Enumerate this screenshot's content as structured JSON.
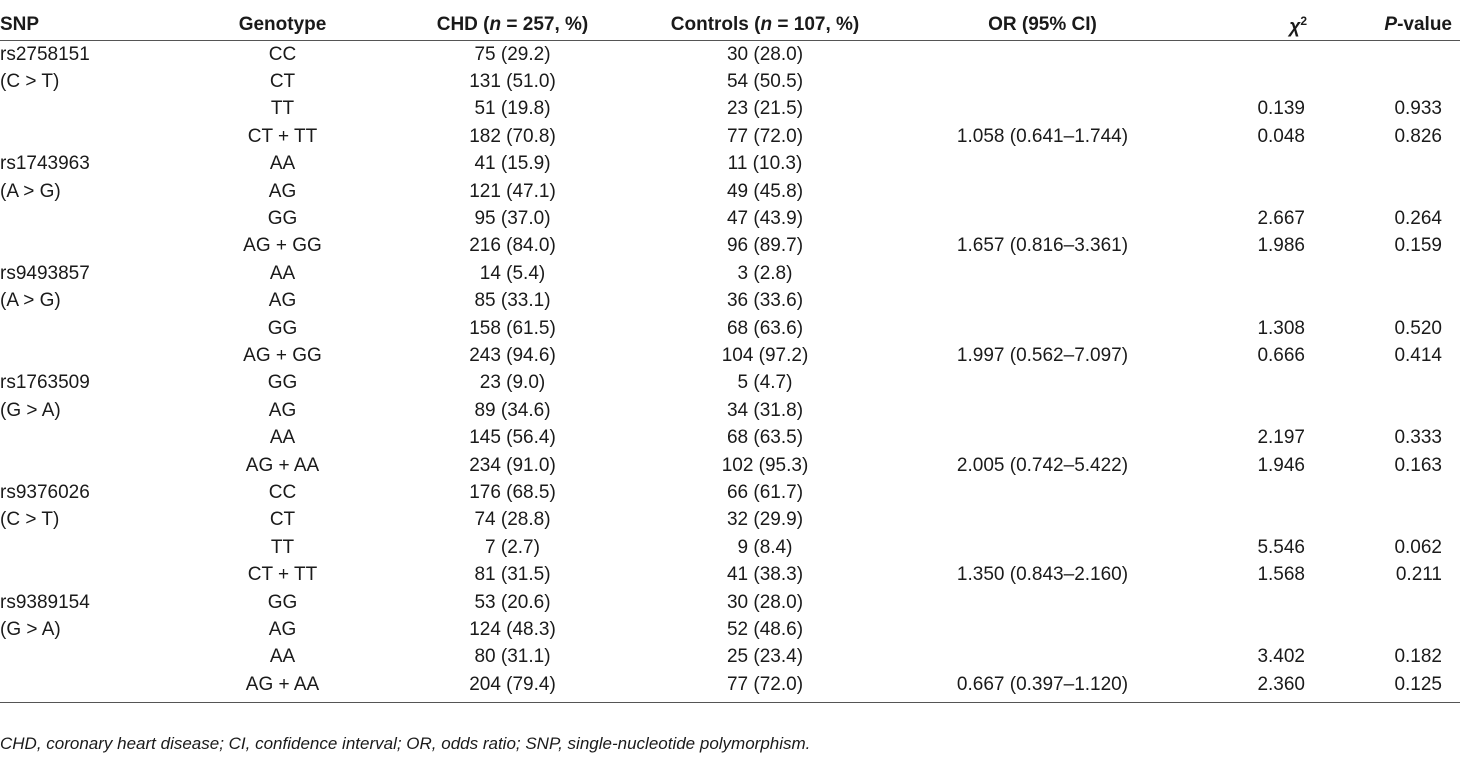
{
  "headers": {
    "snp": "SNP",
    "genotype": "Genotype",
    "chd_pre": "CHD (",
    "chd_n": "n",
    "chd_post": " = 257, %)",
    "ctrl_pre": "Controls (",
    "ctrl_n": "n",
    "ctrl_post": " = 107, %)",
    "or": "OR (95% CI)",
    "chi": "χ",
    "chi_sup": "2",
    "p_italic": "P",
    "p_rest": "-value"
  },
  "rows": [
    {
      "snp": "rs2758151",
      "genotype": "CC",
      "chd": "75 (29.2)",
      "controls": "30 (28.0)",
      "or": "",
      "chi2": "",
      "p": ""
    },
    {
      "snp": "(C > T)",
      "genotype": "CT",
      "chd": "131 (51.0)",
      "controls": "54 (50.5)",
      "or": "",
      "chi2": "",
      "p": ""
    },
    {
      "snp": "",
      "genotype": "TT",
      "chd": "51 (19.8)",
      "controls": "23 (21.5)",
      "or": "",
      "chi2": "0.139",
      "p": "0.933"
    },
    {
      "snp": "",
      "genotype": "CT + TT",
      "chd": "182 (70.8)",
      "controls": "77 (72.0)",
      "or": "1.058 (0.641–1.744)",
      "chi2": "0.048",
      "p": "0.826"
    },
    {
      "snp": "rs1743963",
      "genotype": "AA",
      "chd": "41 (15.9)",
      "controls": "11 (10.3)",
      "or": "",
      "chi2": "",
      "p": ""
    },
    {
      "snp": "(A > G)",
      "genotype": "AG",
      "chd": "121 (47.1)",
      "controls": "49 (45.8)",
      "or": "",
      "chi2": "",
      "p": ""
    },
    {
      "snp": "",
      "genotype": "GG",
      "chd": "95 (37.0)",
      "controls": "47 (43.9)",
      "or": "",
      "chi2": "2.667",
      "p": "0.264"
    },
    {
      "snp": "",
      "genotype": "AG + GG",
      "chd": "216 (84.0)",
      "controls": "96 (89.7)",
      "or": "1.657 (0.816–3.361)",
      "chi2": "1.986",
      "p": "0.159"
    },
    {
      "snp": "rs9493857",
      "genotype": "AA",
      "chd": "14 (5.4)",
      "controls": "3 (2.8)",
      "or": "",
      "chi2": "",
      "p": ""
    },
    {
      "snp": "(A > G)",
      "genotype": "AG",
      "chd": "85 (33.1)",
      "controls": "36 (33.6)",
      "or": "",
      "chi2": "",
      "p": ""
    },
    {
      "snp": "",
      "genotype": "GG",
      "chd": "158 (61.5)",
      "controls": "68 (63.6)",
      "or": "",
      "chi2": "1.308",
      "p": "0.520"
    },
    {
      "snp": "",
      "genotype": "AG + GG",
      "chd": "243 (94.6)",
      "controls": "104 (97.2)",
      "or": "1.997 (0.562–7.097)",
      "chi2": "0.666",
      "p": "0.414"
    },
    {
      "snp": "rs1763509",
      "genotype": "GG",
      "chd": "23 (9.0)",
      "controls": "5 (4.7)",
      "or": "",
      "chi2": "",
      "p": ""
    },
    {
      "snp": "(G > A)",
      "genotype": "AG",
      "chd": "89 (34.6)",
      "controls": "34 (31.8)",
      "or": "",
      "chi2": "",
      "p": ""
    },
    {
      "snp": "",
      "genotype": "AA",
      "chd": "145 (56.4)",
      "controls": "68 (63.5)",
      "or": "",
      "chi2": "2.197",
      "p": "0.333"
    },
    {
      "snp": "",
      "genotype": "AG + AA",
      "chd": "234 (91.0)",
      "controls": "102 (95.3)",
      "or": "2.005 (0.742–5.422)",
      "chi2": "1.946",
      "p": "0.163"
    },
    {
      "snp": "rs9376026",
      "genotype": "CC",
      "chd": "176 (68.5)",
      "controls": "66 (61.7)",
      "or": "",
      "chi2": "",
      "p": ""
    },
    {
      "snp": "(C > T)",
      "genotype": "CT",
      "chd": "74 (28.8)",
      "controls": "32 (29.9)",
      "or": "",
      "chi2": "",
      "p": ""
    },
    {
      "snp": "",
      "genotype": "TT",
      "chd": "7 (2.7)",
      "controls": "9 (8.4)",
      "or": "",
      "chi2": "5.546",
      "p": "0.062"
    },
    {
      "snp": "",
      "genotype": "CT + TT",
      "chd": "81 (31.5)",
      "controls": "41 (38.3)",
      "or": "1.350 (0.843–2.160)",
      "chi2": "1.568",
      "p": "0.211"
    },
    {
      "snp": "rs9389154",
      "genotype": "GG",
      "chd": "53 (20.6)",
      "controls": "30 (28.0)",
      "or": "",
      "chi2": "",
      "p": ""
    },
    {
      "snp": "(G > A)",
      "genotype": "AG",
      "chd": "124 (48.3)",
      "controls": "52 (48.6)",
      "or": "",
      "chi2": "",
      "p": ""
    },
    {
      "snp": "",
      "genotype": "AA",
      "chd": "80 (31.1)",
      "controls": "25 (23.4)",
      "or": "",
      "chi2": "3.402",
      "p": "0.182"
    },
    {
      "snp": "",
      "genotype": "AG + AA",
      "chd": "204 (79.4)",
      "controls": "77 (72.0)",
      "or": "0.667 (0.397–1.120)",
      "chi2": "2.360",
      "p": "0.125"
    }
  ],
  "footnote": "CHD, coronary heart disease; CI, confidence interval; OR, odds ratio; SNP, single-nucleotide polymorphism."
}
